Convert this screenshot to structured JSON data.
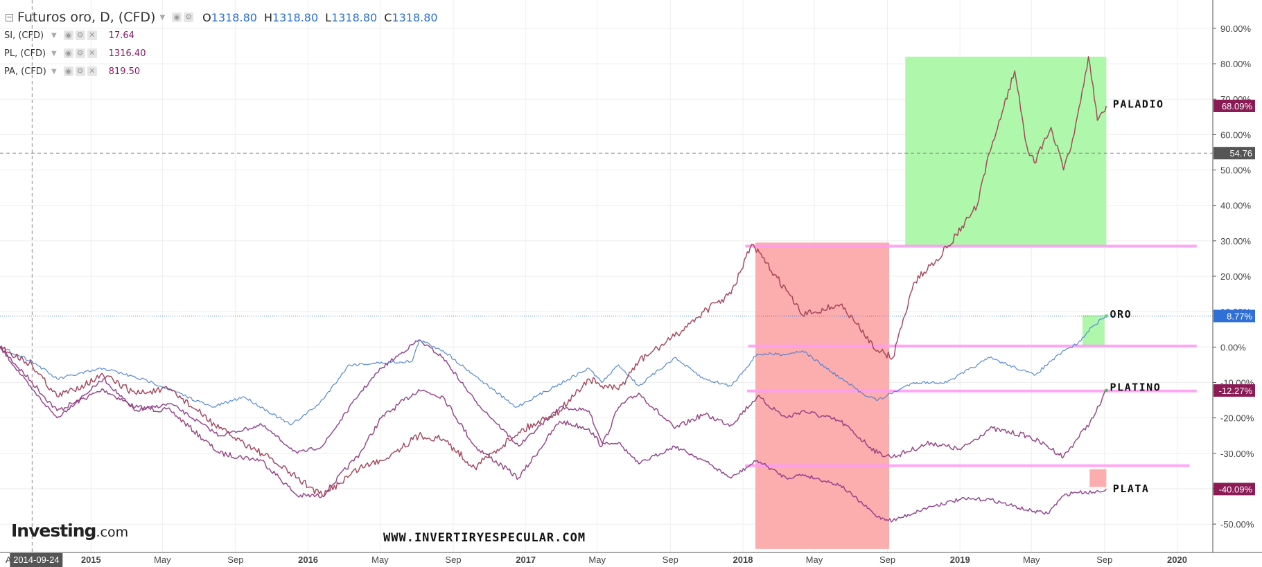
{
  "legend": {
    "main": {
      "title": "Futuros oro, D, (CFD)",
      "o_label": "O",
      "o_val": "1318.80",
      "h_label": "H",
      "h_val": "1318.80",
      "l_label": "L",
      "l_val": "1318.80",
      "c_label": "C",
      "c_val": "1318.80",
      "icons": [
        "eye-icon",
        "gear-icon"
      ]
    },
    "subs": [
      {
        "title": "SI, (CFD)",
        "value": "17.64"
      },
      {
        "title": "PL, (CFD)",
        "value": "1316.40"
      },
      {
        "title": "PA, (CFD)",
        "value": "819.50"
      }
    ],
    "sub_icons": [
      "eye-icon",
      "gear-icon",
      "close-icon"
    ]
  },
  "branding": {
    "logo_main": "Investing",
    "logo_sub": ".com",
    "watermark": "WWW.INVERTIRYESPECULAR.COM"
  },
  "colors": {
    "gold": "#4a7fd4",
    "silver": "#8a3a8a",
    "platinum": "#8e3a7e",
    "palladium": "#a03c52",
    "green_zone": "#aaf7a6",
    "red_zone": "#fca9a9",
    "level_line": "#ff9ef2",
    "gold_label": "#2f6fd6",
    "series_label": "#8b1a55",
    "crosshair_label": "#555555"
  },
  "chart_data": {
    "type": "line",
    "title": "Futuros oro, D, (CFD)",
    "xlabel": "",
    "ylabel": "",
    "ylim": [
      -58,
      98
    ],
    "grid": true,
    "x_tick_labels": [
      "Ag",
      "2015",
      "May",
      "Sep",
      "2016",
      "May",
      "Sep",
      "2017",
      "May",
      "Sep",
      "2018",
      "May",
      "Sep",
      "2019",
      "May",
      "Sep",
      "2020"
    ],
    "y_tick_labels": [
      "90.00%",
      "80.00%",
      "70.00%",
      "60.00%",
      "50.00%",
      "40.00%",
      "30.00%",
      "20.00%",
      "10.00%",
      "0.00%",
      "-10.00%",
      "-20.00%",
      "-30.00%",
      "-40.00%",
      "-50.00%"
    ],
    "x_range": [
      "2014-08-01",
      "2020-03-01"
    ],
    "crosshair_date": "2014-09-24",
    "crosshair_value": "54.76",
    "series": [
      {
        "name": "ORO",
        "last_label": "8.77%",
        "points": [
          [
            "2014-08-01",
            0
          ],
          [
            "2014-09-24",
            -4
          ],
          [
            "2014-11-05",
            -9
          ],
          [
            "2015-01-22",
            -6
          ],
          [
            "2015-04-15",
            -10
          ],
          [
            "2015-07-24",
            -17
          ],
          [
            "2015-09-15",
            -14
          ],
          [
            "2015-12-03",
            -22
          ],
          [
            "2016-01-20",
            -16
          ],
          [
            "2016-03-10",
            -5
          ],
          [
            "2016-06-24",
            -4
          ],
          [
            "2016-07-06",
            2
          ],
          [
            "2016-08-15",
            -1
          ],
          [
            "2016-10-07",
            -8
          ],
          [
            "2016-12-15",
            -17
          ],
          [
            "2017-02-20",
            -11
          ],
          [
            "2017-04-17",
            -6
          ],
          [
            "2017-05-09",
            -10
          ],
          [
            "2017-06-06",
            -5
          ],
          [
            "2017-07-10",
            -11
          ],
          [
            "2017-09-08",
            -3
          ],
          [
            "2017-10-27",
            -9
          ],
          [
            "2017-12-12",
            -11
          ],
          [
            "2018-01-25",
            -2
          ],
          [
            "2018-03-15",
            -2
          ],
          [
            "2018-04-11",
            -1
          ],
          [
            "2018-05-30",
            -7
          ],
          [
            "2018-07-20",
            -13
          ],
          [
            "2018-08-16",
            -15
          ],
          [
            "2018-10-15",
            -10
          ],
          [
            "2018-12-10",
            -10
          ],
          [
            "2019-01-30",
            -5
          ],
          [
            "2019-02-20",
            -3
          ],
          [
            "2019-04-23",
            -7
          ],
          [
            "2019-05-06",
            -8
          ],
          [
            "2019-06-03",
            -4
          ],
          [
            "2019-06-26",
            -1
          ],
          [
            "2019-07-18",
            1
          ],
          [
            "2019-08-13",
            6
          ],
          [
            "2019-09-04",
            8.77
          ]
        ]
      },
      {
        "name": "PLATA",
        "last_label": "-40.09%",
        "points": [
          [
            "2014-08-01",
            0
          ],
          [
            "2014-09-24",
            -12
          ],
          [
            "2014-11-05",
            -20
          ],
          [
            "2015-01-22",
            -9
          ],
          [
            "2015-03-16",
            -18
          ],
          [
            "2015-05-15",
            -16
          ],
          [
            "2015-08-05",
            -25
          ],
          [
            "2015-10-15",
            -22
          ],
          [
            "2015-12-14",
            -30
          ],
          [
            "2016-01-25",
            -28
          ],
          [
            "2016-03-28",
            -13
          ],
          [
            "2016-05-03",
            -6
          ],
          [
            "2016-07-05",
            2
          ],
          [
            "2016-08-15",
            -3
          ],
          [
            "2016-10-07",
            -15
          ],
          [
            "2016-12-20",
            -28
          ],
          [
            "2017-02-27",
            -17
          ],
          [
            "2017-04-17",
            -18
          ],
          [
            "2017-05-09",
            -27
          ],
          [
            "2017-06-06",
            -27
          ],
          [
            "2017-07-10",
            -33
          ],
          [
            "2017-09-08",
            -28
          ],
          [
            "2017-10-27",
            -32
          ],
          [
            "2017-12-12",
            -37
          ],
          [
            "2018-01-25",
            -32
          ],
          [
            "2018-03-15",
            -37
          ],
          [
            "2018-04-11",
            -36
          ],
          [
            "2018-06-14",
            -39
          ],
          [
            "2018-08-16",
            -48
          ],
          [
            "2018-09-10",
            -49
          ],
          [
            "2018-11-13",
            -45
          ],
          [
            "2019-01-02",
            -43
          ],
          [
            "2019-02-20",
            -43
          ],
          [
            "2019-04-23",
            -46
          ],
          [
            "2019-05-28",
            -47
          ],
          [
            "2019-06-24",
            -42
          ],
          [
            "2019-07-12",
            -41
          ],
          [
            "2019-08-13",
            -41
          ],
          [
            "2019-09-04",
            -40.09
          ]
        ]
      },
      {
        "name": "PLATINO",
        "last_label": "-12.27%",
        "points": [
          [
            "2014-08-01",
            0
          ],
          [
            "2014-09-24",
            -10
          ],
          [
            "2014-11-05",
            -18
          ],
          [
            "2015-01-22",
            -12
          ],
          [
            "2015-03-16",
            -17
          ],
          [
            "2015-05-15",
            -18
          ],
          [
            "2015-08-05",
            -30
          ],
          [
            "2015-10-15",
            -32
          ],
          [
            "2015-12-14",
            -42
          ],
          [
            "2016-01-25",
            -42
          ],
          [
            "2016-03-28",
            -30
          ],
          [
            "2016-05-03",
            -20
          ],
          [
            "2016-07-05",
            -12
          ],
          [
            "2016-08-15",
            -14
          ],
          [
            "2016-10-07",
            -28
          ],
          [
            "2016-12-20",
            -37
          ],
          [
            "2017-02-27",
            -21
          ],
          [
            "2017-04-17",
            -23
          ],
          [
            "2017-05-09",
            -28
          ],
          [
            "2017-06-06",
            -17
          ],
          [
            "2017-07-10",
            -13
          ],
          [
            "2017-09-08",
            -23
          ],
          [
            "2017-10-27",
            -19
          ],
          [
            "2017-12-12",
            -22
          ],
          [
            "2018-01-25",
            -14
          ],
          [
            "2018-03-15",
            -20
          ],
          [
            "2018-04-11",
            -18
          ],
          [
            "2018-06-14",
            -21
          ],
          [
            "2018-08-16",
            -30
          ],
          [
            "2018-09-10",
            -31
          ],
          [
            "2018-11-13",
            -27
          ],
          [
            "2019-01-02",
            -29
          ],
          [
            "2019-02-20",
            -23
          ],
          [
            "2019-04-23",
            -25
          ],
          [
            "2019-05-28",
            -28
          ],
          [
            "2019-06-24",
            -31
          ],
          [
            "2019-07-12",
            -27
          ],
          [
            "2019-08-13",
            -20
          ],
          [
            "2019-09-04",
            -12.27
          ]
        ]
      },
      {
        "name": "PALADIO",
        "last_label": "68.09%",
        "points": [
          [
            "2014-08-01",
            0
          ],
          [
            "2014-09-24",
            -5
          ],
          [
            "2014-11-05",
            -14
          ],
          [
            "2015-01-22",
            -8
          ],
          [
            "2015-03-16",
            -13
          ],
          [
            "2015-05-15",
            -12
          ],
          [
            "2015-08-05",
            -23
          ],
          [
            "2015-10-15",
            -30
          ],
          [
            "2015-12-14",
            -37
          ],
          [
            "2016-01-25",
            -42
          ],
          [
            "2016-03-28",
            -34
          ],
          [
            "2016-05-03",
            -32
          ],
          [
            "2016-07-05",
            -25
          ],
          [
            "2016-08-15",
            -26
          ],
          [
            "2016-10-07",
            -34
          ],
          [
            "2016-12-20",
            -24
          ],
          [
            "2017-02-27",
            -18
          ],
          [
            "2017-04-17",
            -9
          ],
          [
            "2017-05-09",
            -11
          ],
          [
            "2017-06-06",
            -12
          ],
          [
            "2017-07-10",
            -4
          ],
          [
            "2017-09-08",
            3
          ],
          [
            "2017-10-27",
            10
          ],
          [
            "2017-12-12",
            15
          ],
          [
            "2018-01-16",
            29
          ],
          [
            "2018-03-15",
            16
          ],
          [
            "2018-04-11",
            9
          ],
          [
            "2018-06-14",
            12
          ],
          [
            "2018-08-16",
            -1
          ],
          [
            "2018-09-10",
            -3
          ],
          [
            "2018-10-15",
            18
          ],
          [
            "2018-12-10",
            28
          ],
          [
            "2019-01-30",
            40
          ],
          [
            "2019-02-20",
            55
          ],
          [
            "2019-04-03",
            78
          ],
          [
            "2019-04-23",
            57
          ],
          [
            "2019-05-06",
            52
          ],
          [
            "2019-06-03",
            62
          ],
          [
            "2019-06-24",
            50
          ],
          [
            "2019-07-12",
            60
          ],
          [
            "2019-08-05",
            82
          ],
          [
            "2019-08-20",
            64
          ],
          [
            "2019-09-04",
            68.09
          ]
        ]
      }
    ],
    "zones": [
      {
        "color": "green",
        "x0": "2018-10-01",
        "x1": "2019-09-04",
        "y0": 28.5,
        "y1": 82
      },
      {
        "color": "red",
        "x0": "2018-01-22",
        "x1": "2018-09-04",
        "y0": -57,
        "y1": 29.5
      },
      {
        "color": "green",
        "x0": "2019-07-26",
        "x1": "2019-09-01",
        "y0": 0.3,
        "y1": 9
      },
      {
        "color": "red",
        "x0": "2019-08-07",
        "x1": "2019-09-04",
        "y0": -39.5,
        "y1": -34.5
      }
    ],
    "levels": [
      {
        "y": 28.5,
        "x0": "2018-01-05",
        "x1": "2020-02-03"
      },
      {
        "y": 0.3,
        "x0": "2018-01-10",
        "x1": "2020-02-03"
      },
      {
        "y": -12.4,
        "x0": "2018-01-08",
        "x1": "2020-02-03"
      },
      {
        "y": -33.5,
        "x0": "2018-01-05",
        "x1": "2020-01-22"
      }
    ],
    "annotations": [
      {
        "text": "PALADIO",
        "x": "2019-09-15",
        "y": 68.6
      },
      {
        "text": "ORO",
        "x": "2019-09-10",
        "y": 9.2
      },
      {
        "text": "PLATINO",
        "x": "2019-09-10",
        "y": -11.4
      },
      {
        "text": "PLATA",
        "x": "2019-09-15",
        "y": -40
      }
    ]
  }
}
